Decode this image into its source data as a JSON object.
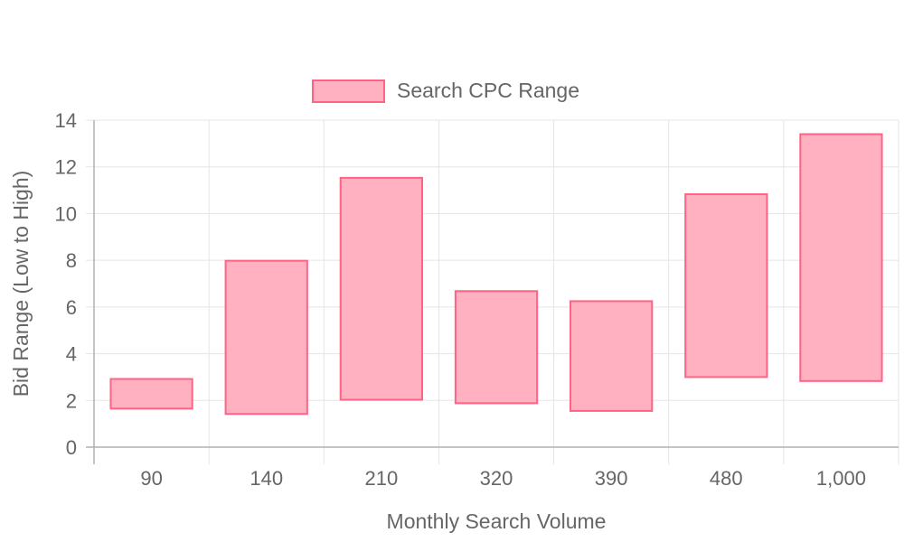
{
  "chart_data": {
    "type": "bar",
    "categories": [
      "90",
      "140",
      "210",
      "320",
      "390",
      "480",
      "1,000"
    ],
    "series": [
      {
        "name": "Search CPC Range",
        "ranges": [
          [
            1.65,
            2.92
          ],
          [
            1.42,
            7.98
          ],
          [
            2.03,
            11.53
          ],
          [
            1.88,
            6.68
          ],
          [
            1.55,
            6.25
          ],
          [
            3.0,
            10.83
          ],
          [
            2.83,
            13.4
          ]
        ]
      }
    ],
    "xlabel": "Monthly Search Volume",
    "ylabel": "Bid Range (Low to High)",
    "ylim": [
      0,
      14
    ],
    "yticks": [
      0,
      2,
      4,
      6,
      8,
      10,
      12,
      14
    ],
    "grid": true,
    "legend_position": "top",
    "colors": {
      "bar_fill": "#ffb1c1",
      "bar_border": "#ff6384",
      "grid": "#e5e5e5",
      "axis": "#b0b0b0",
      "text": "#666666"
    }
  }
}
